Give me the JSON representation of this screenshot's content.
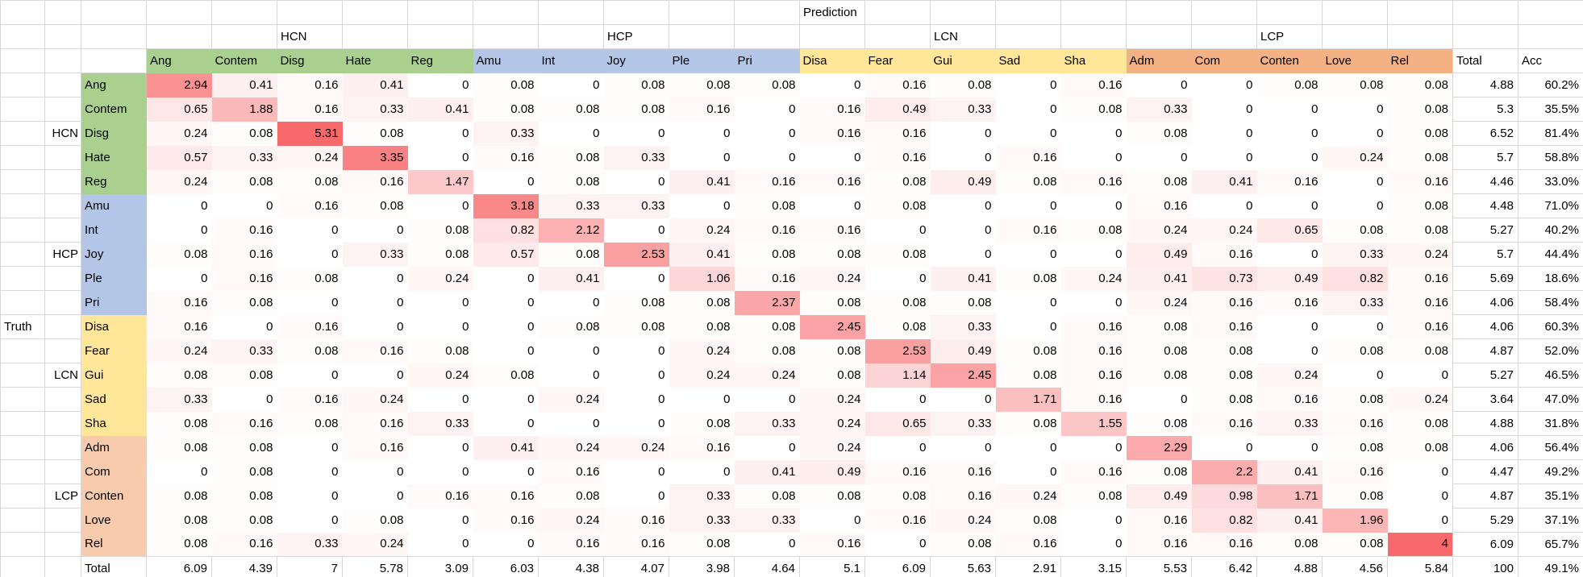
{
  "header": {
    "prediction_label": "Prediction",
    "truth_label": "Truth",
    "total_label": "Total",
    "acc_label": "Acc"
  },
  "groups": [
    {
      "name": "HCN",
      "header_fill": "#A9D08E",
      "label_fill": "#A9D08E",
      "emotions": [
        "Ang",
        "Contem",
        "Disg",
        "Hate",
        "Reg"
      ]
    },
    {
      "name": "HCP",
      "header_fill": "#B4C6E7",
      "label_fill": "#B4C6E7",
      "emotions": [
        "Amu",
        "Int",
        "Joy",
        "Ple",
        "Pri"
      ]
    },
    {
      "name": "LCN",
      "header_fill": "#FFE699",
      "label_fill": "#FFE699",
      "emotions": [
        "Disa",
        "Fear",
        "Gui",
        "Sad",
        "Sha"
      ]
    },
    {
      "name": "LCP",
      "header_fill": "#F4B183",
      "label_fill": "#F8CBAD",
      "emotions": [
        "Adm",
        "Com",
        "Conten",
        "Love",
        "Rel"
      ]
    }
  ],
  "heatmap": {
    "zero_color": "#FFFFFF",
    "max_color": "#F8696B",
    "max_value": 4
  },
  "gridline_color": "#D8D8D8",
  "rows": [
    {
      "label": "Ang",
      "group": "HCN",
      "values": [
        2.94,
        0.41,
        0.16,
        0.41,
        0,
        0.08,
        0,
        0.08,
        0.08,
        0.08,
        0,
        0.16,
        0.08,
        0,
        0.16,
        0,
        0,
        0.08,
        0.08,
        0.08
      ],
      "total": 4.88,
      "acc": "60.2%"
    },
    {
      "label": "Contem",
      "group": "HCN",
      "values": [
        0.65,
        1.88,
        0.16,
        0.33,
        0.41,
        0.08,
        0.08,
        0.08,
        0.16,
        0,
        0.16,
        0.49,
        0.33,
        0,
        0.08,
        0.33,
        0,
        0,
        0,
        0.08
      ],
      "total": 5.3,
      "acc": "35.5%"
    },
    {
      "label": "Disg",
      "group": "HCN",
      "values": [
        0.24,
        0.08,
        5.31,
        0.08,
        0,
        0.33,
        0,
        0,
        0,
        0,
        0.16,
        0.16,
        0,
        0,
        0,
        0.08,
        0,
        0,
        0,
        0.08
      ],
      "total": 6.52,
      "acc": "81.4%"
    },
    {
      "label": "Hate",
      "group": "HCN",
      "values": [
        0.57,
        0.33,
        0.24,
        3.35,
        0,
        0.16,
        0.08,
        0.33,
        0,
        0,
        0,
        0.16,
        0,
        0.16,
        0,
        0,
        0,
        0,
        0.24,
        0.08
      ],
      "total": 5.7,
      "acc": "58.8%"
    },
    {
      "label": "Reg",
      "group": "HCN",
      "values": [
        0.24,
        0.08,
        0.08,
        0.16,
        1.47,
        0,
        0.08,
        0,
        0.41,
        0.16,
        0.16,
        0.08,
        0.49,
        0.08,
        0.16,
        0.08,
        0.41,
        0.16,
        0,
        0.16
      ],
      "total": 4.46,
      "acc": "33.0%"
    },
    {
      "label": "Amu",
      "group": "HCP",
      "values": [
        0,
        0,
        0.16,
        0.08,
        0,
        3.18,
        0.33,
        0.33,
        0,
        0.08,
        0,
        0.08,
        0,
        0,
        0,
        0.16,
        0,
        0,
        0,
        0.08
      ],
      "total": 4.48,
      "acc": "71.0%"
    },
    {
      "label": "Int",
      "group": "HCP",
      "values": [
        0,
        0.16,
        0,
        0,
        0.08,
        0.82,
        2.12,
        0,
        0.24,
        0.16,
        0.16,
        0,
        0,
        0.16,
        0.08,
        0.24,
        0.24,
        0.65,
        0.08,
        0.08
      ],
      "total": 5.27,
      "acc": "40.2%"
    },
    {
      "label": "Joy",
      "group": "HCP",
      "values": [
        0.08,
        0.16,
        0,
        0.33,
        0.08,
        0.57,
        0.08,
        2.53,
        0.41,
        0.08,
        0.08,
        0.08,
        0,
        0,
        0,
        0.49,
        0.16,
        0,
        0.33,
        0.24
      ],
      "total": 5.7,
      "acc": "44.4%"
    },
    {
      "label": "Ple",
      "group": "HCP",
      "values": [
        0,
        0.16,
        0.08,
        0,
        0.24,
        0,
        0.41,
        0,
        1.06,
        0.16,
        0.24,
        0,
        0.41,
        0.08,
        0.24,
        0.41,
        0.73,
        0.49,
        0.82,
        0.16
      ],
      "total": 5.69,
      "acc": "18.6%"
    },
    {
      "label": "Pri",
      "group": "HCP",
      "values": [
        0.16,
        0.08,
        0,
        0,
        0,
        0,
        0,
        0.08,
        0.08,
        2.37,
        0.08,
        0.08,
        0.08,
        0,
        0,
        0.24,
        0.16,
        0.16,
        0.33,
        0.16
      ],
      "total": 4.06,
      "acc": "58.4%"
    },
    {
      "label": "Disa",
      "group": "LCN",
      "values": [
        0.16,
        0,
        0.16,
        0,
        0,
        0,
        0.08,
        0.08,
        0.08,
        0.08,
        2.45,
        0.08,
        0.33,
        0,
        0.16,
        0.08,
        0.16,
        0,
        0,
        0.16
      ],
      "total": 4.06,
      "acc": "60.3%"
    },
    {
      "label": "Fear",
      "group": "LCN",
      "values": [
        0.24,
        0.33,
        0.08,
        0.16,
        0.08,
        0,
        0,
        0,
        0.24,
        0.08,
        0.08,
        2.53,
        0.49,
        0.08,
        0.16,
        0.08,
        0.08,
        0,
        0.08,
        0.08
      ],
      "total": 4.87,
      "acc": "52.0%"
    },
    {
      "label": "Gui",
      "group": "LCN",
      "values": [
        0.08,
        0.08,
        0,
        0,
        0.24,
        0.08,
        0,
        0,
        0.24,
        0.24,
        0.08,
        1.14,
        2.45,
        0.08,
        0.16,
        0.08,
        0.08,
        0.24,
        0,
        0
      ],
      "total": 5.27,
      "acc": "46.5%"
    },
    {
      "label": "Sad",
      "group": "LCN",
      "values": [
        0.33,
        0,
        0.16,
        0.24,
        0,
        0,
        0.24,
        0,
        0,
        0,
        0.24,
        0,
        0,
        1.71,
        0.16,
        0,
        0.08,
        0.16,
        0.08,
        0.24
      ],
      "total": 3.64,
      "acc": "47.0%"
    },
    {
      "label": "Sha",
      "group": "LCN",
      "values": [
        0.08,
        0.16,
        0.08,
        0.16,
        0.33,
        0,
        0,
        0,
        0.08,
        0.33,
        0.24,
        0.65,
        0.33,
        0.08,
        1.55,
        0.08,
        0.16,
        0.33,
        0.16,
        0.08
      ],
      "total": 4.88,
      "acc": "31.8%"
    },
    {
      "label": "Adm",
      "group": "LCP",
      "values": [
        0.08,
        0.08,
        0,
        0.16,
        0,
        0.41,
        0.24,
        0.24,
        0.16,
        0,
        0.24,
        0,
        0,
        0,
        0,
        2.29,
        0,
        0,
        0.08,
        0.08
      ],
      "total": 4.06,
      "acc": "56.4%"
    },
    {
      "label": "Com",
      "group": "LCP",
      "values": [
        0,
        0.08,
        0,
        0,
        0,
        0,
        0.16,
        0,
        0,
        0.41,
        0.49,
        0.16,
        0.16,
        0,
        0.16,
        0.08,
        2.2,
        0.41,
        0.16,
        0
      ],
      "total": 4.47,
      "acc": "49.2%"
    },
    {
      "label": "Conten",
      "group": "LCP",
      "values": [
        0.08,
        0.08,
        0,
        0,
        0.16,
        0.16,
        0.08,
        0,
        0.33,
        0.08,
        0.08,
        0.08,
        0.16,
        0.24,
        0.08,
        0.49,
        0.98,
        1.71,
        0.08,
        0
      ],
      "total": 4.87,
      "acc": "35.1%"
    },
    {
      "label": "Love",
      "group": "LCP",
      "values": [
        0.08,
        0.08,
        0,
        0.08,
        0,
        0.16,
        0.24,
        0.16,
        0.33,
        0.33,
        0,
        0.16,
        0.24,
        0.08,
        0,
        0.16,
        0.82,
        0.41,
        1.96,
        0
      ],
      "total": 5.29,
      "acc": "37.1%"
    },
    {
      "label": "Rel",
      "group": "LCP",
      "values": [
        0.08,
        0.16,
        0.33,
        0.24,
        0,
        0,
        0.16,
        0.16,
        0.08,
        0,
        0.16,
        0,
        0.08,
        0.16,
        0,
        0.16,
        0.16,
        0.08,
        0.08,
        4
      ],
      "total": 6.09,
      "acc": "65.7%"
    }
  ],
  "totals_row": {
    "label": "Total",
    "values": [
      6.09,
      4.39,
      7,
      5.78,
      3.09,
      6.03,
      4.38,
      4.07,
      3.98,
      4.64,
      5.1,
      6.09,
      5.63,
      2.91,
      3.15,
      5.53,
      6.42,
      4.88,
      4.56,
      5.84
    ],
    "total": 100,
    "acc": "49.1%"
  }
}
